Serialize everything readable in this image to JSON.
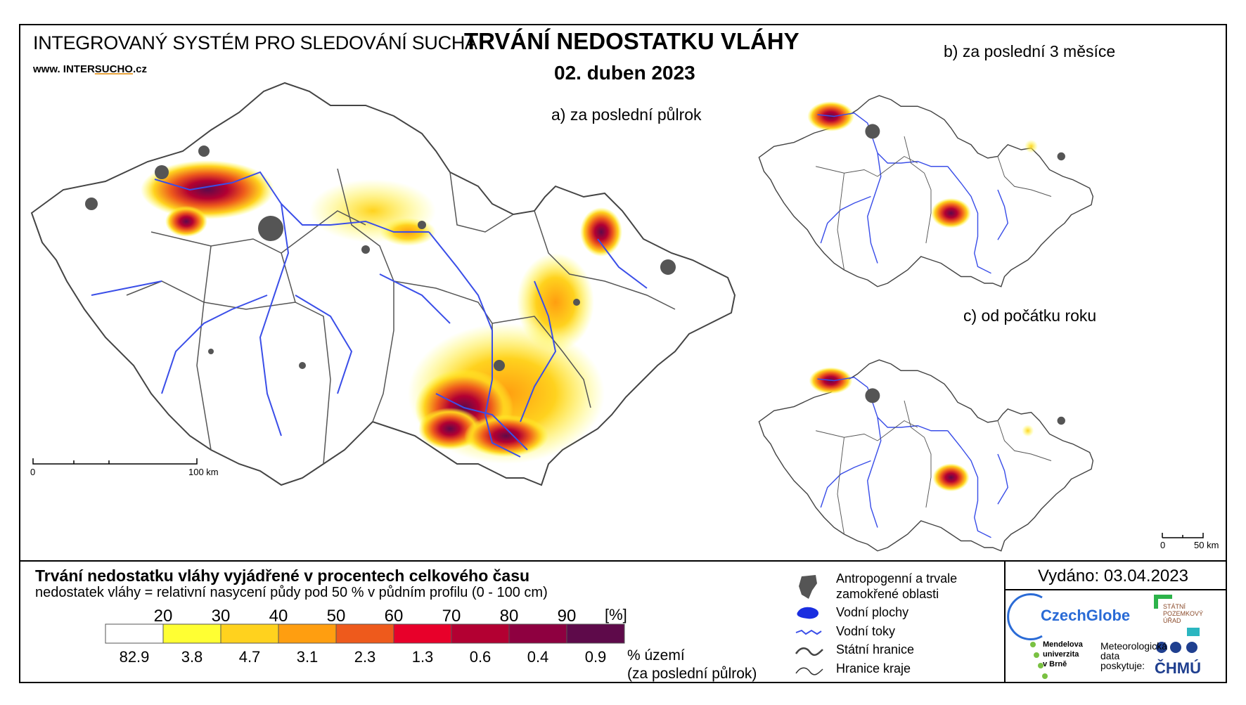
{
  "header": {
    "system_name": "INTEGROVANÝ SYSTÉM PRO SLEDOVÁNÍ SUCHA",
    "url_prefix": "www. INTER",
    "url_brand": "SUCHO",
    "url_suffix": ".cz",
    "title": "TRVÁNÍ NEDOSTATKU VLÁHY",
    "date": "02. duben 2023"
  },
  "maps": {
    "a_label": "a) za poslední půlrok",
    "b_label": "b) za poslední 3 měsíce",
    "c_label": "c) od počátku roku",
    "scale_main": {
      "zero": "0",
      "end": "100 km"
    },
    "scale_small": {
      "zero": "0",
      "end": "50 km"
    }
  },
  "legend": {
    "title": "Trvání nedostatku vláhy vyjádřené v procentech celkového času",
    "subtitle": "nedostatek vláhy = relativní nasycení půdy pod 50 % v půdním profilu (0 - 100 cm)",
    "unit": "[%]",
    "ticks": [
      "20",
      "30",
      "40",
      "50",
      "60",
      "70",
      "80",
      "90"
    ],
    "colors": [
      "#ffffff",
      "#ffff33",
      "#ffd21e",
      "#ff9e10",
      "#ee5a1c",
      "#e8002a",
      "#b30032",
      "#8e0040",
      "#5e0a4a"
    ],
    "percents": [
      "82.9",
      "3.8",
      "4.7",
      "3.1",
      "2.3",
      "1.3",
      "0.6",
      "0.4",
      "0.9"
    ],
    "percent_label": "% území\n(za poslední půlrok)"
  },
  "symbols": {
    "anthropogenic": "Antropogenní a trvale\nzamokřené oblasti",
    "water_bodies": "Vodní plochy",
    "water_courses": "Vodní toky",
    "state_border": "Státní hranice",
    "region_border": "Hranice kraje"
  },
  "issued": "Vydáno: 03.04.2023",
  "logos": {
    "czechglobe": "CzechGlobe",
    "spu": "STÁTNÍ\nPOZEMKOVÝ\nÚŘAD",
    "mendelu": "Mendelova\nuniverzita\nv Brně",
    "meteo": "Meteorologická\ndata\nposkytuje:",
    "chmu": "ČHMÚ"
  },
  "map_colors": {
    "border": "#444444",
    "river": "#3a4ee8",
    "urban": "#555555"
  }
}
